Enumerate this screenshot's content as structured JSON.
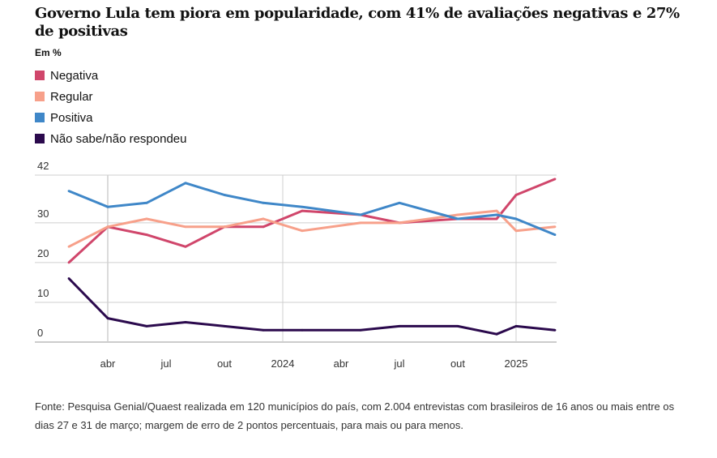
{
  "header": {
    "title": "Governo Lula tem piora em popularidade, com 41% de avaliações negativas e 27% de positivas",
    "subtitle": "Em %"
  },
  "legend": [
    {
      "label": "Negativa",
      "color": "#d0466b"
    },
    {
      "label": "Regular",
      "color": "#f7a08a"
    },
    {
      "label": "Positiva",
      "color": "#3f87c8"
    },
    {
      "label": "Não sabe/não respondeu",
      "color": "#2b0a4d"
    }
  ],
  "chart_data": {
    "type": "line",
    "title": "Governo Lula tem piora em popularidade, com 41% de avaliações negativas e 27% de positivas",
    "subtitle": "Em %",
    "xlabel": "",
    "ylabel": "",
    "x": [
      "2023-02",
      "2023-04",
      "2023-06",
      "2023-08",
      "2023-10",
      "2023-12",
      "2024-02",
      "2024-05",
      "2024-07",
      "2024-10",
      "2024-12",
      "2025-01",
      "2025-03"
    ],
    "x_month_index": [
      1,
      3,
      5,
      7,
      9,
      11,
      13,
      16,
      18,
      21,
      23,
      24,
      26
    ],
    "x_ticks": [
      {
        "label": "abr",
        "month_index": 3
      },
      {
        "label": "jul",
        "month_index": 6
      },
      {
        "label": "out",
        "month_index": 9
      },
      {
        "label": "2024",
        "month_index": 12
      },
      {
        "label": "abr",
        "month_index": 15
      },
      {
        "label": "jul",
        "month_index": 18
      },
      {
        "label": "out",
        "month_index": 21
      },
      {
        "label": "2025",
        "month_index": 24
      }
    ],
    "x_range_month_index": [
      1,
      26
    ],
    "y_ticks": [
      0,
      10,
      20,
      30,
      42
    ],
    "ylim": [
      0,
      42
    ],
    "grid": true,
    "legend_position": "top-left",
    "series": [
      {
        "name": "Negativa",
        "color": "#d0466b",
        "values": [
          20,
          29,
          27,
          24,
          29,
          29,
          33,
          32,
          30,
          31,
          31,
          37,
          41
        ]
      },
      {
        "name": "Regular",
        "color": "#f7a08a",
        "values": [
          24,
          29,
          31,
          29,
          29,
          31,
          28,
          30,
          30,
          32,
          33,
          28,
          29
        ]
      },
      {
        "name": "Positiva",
        "color": "#3f87c8",
        "values": [
          38,
          34,
          35,
          40,
          37,
          35,
          34,
          32,
          35,
          31,
          32,
          31,
          27
        ]
      },
      {
        "name": "Não sabe/não respondeu",
        "color": "#2b0a4d",
        "values": [
          16,
          6,
          4,
          5,
          4,
          3,
          3,
          3,
          4,
          4,
          2,
          4,
          3
        ]
      }
    ]
  },
  "footer": {
    "source": "Fonte: Pesquisa Genial/Quaest realizada em 120 municípios do país, com 2.004 entrevistas com brasileiros de 16 anos ou mais entre os dias 27 e 31 de março; margem de erro de 2 pontos percentuais, para mais ou para menos."
  }
}
